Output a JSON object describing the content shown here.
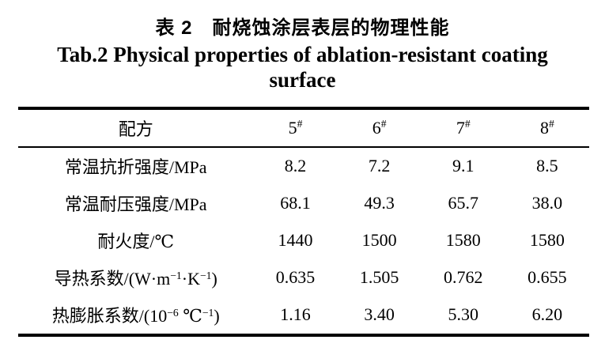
{
  "titles": {
    "zh": "表 2　耐烧蚀涂层表层的物理性能",
    "en_line1": "Tab.2 Physical properties of ablation-resistant coating",
    "en_line2": "surface"
  },
  "table": {
    "header": {
      "label": "配方",
      "columns": [
        {
          "base": "5",
          "sup": "#"
        },
        {
          "base": "6",
          "sup": "#"
        },
        {
          "base": "7",
          "sup": "#"
        },
        {
          "base": "8",
          "sup": "#"
        }
      ]
    },
    "rows": [
      {
        "label_parts": [
          "常温抗折强度/MPa"
        ],
        "values": [
          "8.2",
          "7.2",
          "9.1",
          "8.5"
        ]
      },
      {
        "label_parts": [
          "常温耐压强度/MPa"
        ],
        "values": [
          "68.1",
          "49.3",
          "65.7",
          "38.0"
        ]
      },
      {
        "label_parts": [
          "耐火度/℃"
        ],
        "values": [
          "1440",
          "1500",
          "1580",
          "1580"
        ]
      },
      {
        "label_parts": [
          "导热系数/(W·m",
          "−1",
          "·K",
          "−1",
          ")"
        ],
        "values": [
          "0.635",
          "1.505",
          "0.762",
          "0.655"
        ]
      },
      {
        "label_parts": [
          "热膨胀系数/(10",
          "−6",
          " ℃",
          "−1",
          ")"
        ],
        "values": [
          "1.16",
          "3.40",
          "5.30",
          "6.20"
        ]
      }
    ]
  }
}
